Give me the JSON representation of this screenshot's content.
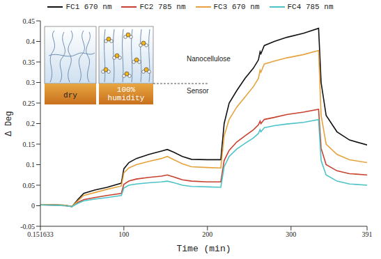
{
  "chart_data": {
    "type": "line",
    "x_label": "Time (min)",
    "y_label": "Δ Deg",
    "x": [
      0.151633,
      20,
      30,
      38,
      45,
      52,
      65,
      80,
      97,
      100,
      106,
      115,
      130,
      145,
      152,
      160,
      170,
      181,
      200,
      216,
      220,
      226,
      235,
      245,
      255,
      261,
      263,
      264,
      268,
      280,
      295,
      315,
      333,
      336,
      342,
      355,
      370,
      391
    ],
    "xlim": [
      0.151633,
      391
    ],
    "xticks": [
      0.151633,
      100,
      200,
      300,
      391
    ],
    "ylim": [
      -0.05,
      0.45
    ],
    "yticks": [
      -0.05,
      0,
      0.05,
      0.1,
      0.15,
      0.2,
      0.25,
      0.3,
      0.35,
      0.4,
      0.45
    ],
    "grid": false,
    "legend": "top",
    "series": [
      {
        "name": "FC1 670 nm",
        "color": "#111111",
        "values": [
          0.003,
          0.002,
          0.001,
          -0.002,
          0.015,
          0.03,
          0.038,
          0.045,
          0.055,
          0.09,
          0.105,
          0.115,
          0.125,
          0.133,
          0.137,
          0.13,
          0.12,
          0.113,
          0.112,
          0.112,
          0.2,
          0.25,
          0.28,
          0.31,
          0.335,
          0.355,
          0.375,
          0.37,
          0.39,
          0.4,
          0.41,
          0.42,
          0.432,
          0.3,
          0.22,
          0.18,
          0.16,
          0.148
        ]
      },
      {
        "name": "FC2 785 nm",
        "color": "#c8402e",
        "values": [
          0.002,
          0.001,
          0,
          -0.002,
          0.008,
          0.015,
          0.02,
          0.025,
          0.03,
          0.052,
          0.06,
          0.065,
          0.069,
          0.072,
          0.075,
          0.07,
          0.063,
          0.06,
          0.058,
          0.058,
          0.11,
          0.135,
          0.155,
          0.17,
          0.185,
          0.197,
          0.206,
          0.2,
          0.21,
          0.215,
          0.222,
          0.228,
          0.235,
          0.14,
          0.1,
          0.085,
          0.078,
          0.075
        ]
      },
      {
        "name": "FC3 670 nm",
        "color": "#e6a23c",
        "values": [
          0.003,
          0.002,
          0.001,
          -0.002,
          0.012,
          0.025,
          0.032,
          0.04,
          0.048,
          0.08,
          0.092,
          0.1,
          0.108,
          0.115,
          0.12,
          0.112,
          0.102,
          0.095,
          0.093,
          0.092,
          0.17,
          0.21,
          0.24,
          0.265,
          0.29,
          0.31,
          0.33,
          0.325,
          0.345,
          0.352,
          0.36,
          0.368,
          0.378,
          0.22,
          0.15,
          0.125,
          0.112,
          0.105
        ]
      },
      {
        "name": "FC4 785 nm",
        "color": "#4cc3c8",
        "values": [
          0.002,
          0.001,
          0,
          -0.002,
          0.006,
          0.012,
          0.016,
          0.02,
          0.025,
          0.043,
          0.05,
          0.053,
          0.056,
          0.058,
          0.06,
          0.056,
          0.05,
          0.047,
          0.046,
          0.045,
          0.095,
          0.12,
          0.138,
          0.152,
          0.165,
          0.176,
          0.185,
          0.18,
          0.19,
          0.195,
          0.199,
          0.203,
          0.21,
          0.11,
          0.075,
          0.06,
          0.053,
          0.05
        ]
      }
    ],
    "annotations": [
      "Nanocellulose",
      "Sensor"
    ],
    "inset_labels": [
      "dry",
      "100% humidity"
    ]
  }
}
